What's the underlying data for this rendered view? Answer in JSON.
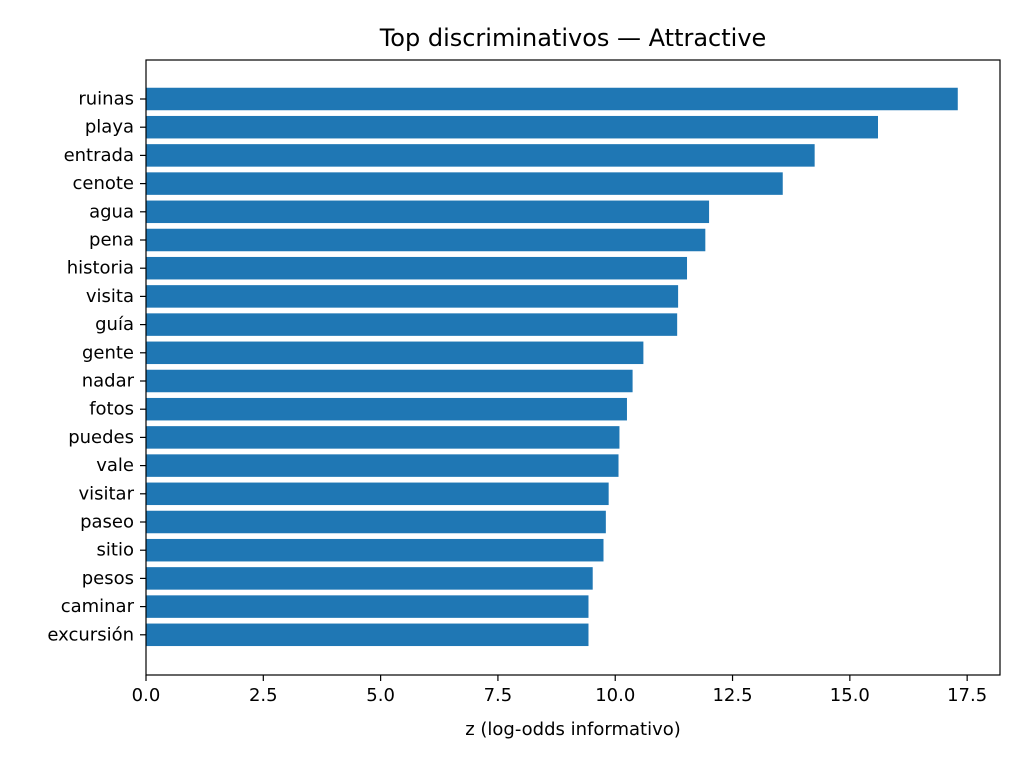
{
  "chart_data": {
    "type": "bar",
    "orientation": "horizontal",
    "title": "Top discriminativos — Attractive",
    "xlabel": "z (log-odds informativo)",
    "ylabel": "",
    "xlim": [
      0,
      18.2
    ],
    "xticks": [
      0.0,
      2.5,
      5.0,
      7.5,
      10.0,
      12.5,
      15.0,
      17.5
    ],
    "xtick_labels": [
      "0.0",
      "2.5",
      "5.0",
      "7.5",
      "10.0",
      "12.5",
      "15.0",
      "17.5"
    ],
    "grid": false,
    "legend": "none",
    "bar_color": "#1f77b4",
    "categories": [
      "ruinas",
      "playa",
      "entrada",
      "cenote",
      "agua",
      "pena",
      "historia",
      "visita",
      "guía",
      "gente",
      "nadar",
      "fotos",
      "puedes",
      "vale",
      "visitar",
      "paseo",
      "sitio",
      "pesos",
      "caminar",
      "excursión"
    ],
    "values": [
      17.3,
      15.6,
      14.25,
      13.57,
      12.0,
      11.92,
      11.53,
      11.34,
      11.32,
      10.6,
      10.37,
      10.25,
      10.09,
      10.07,
      9.86,
      9.8,
      9.75,
      9.52,
      9.43,
      9.43
    ]
  }
}
